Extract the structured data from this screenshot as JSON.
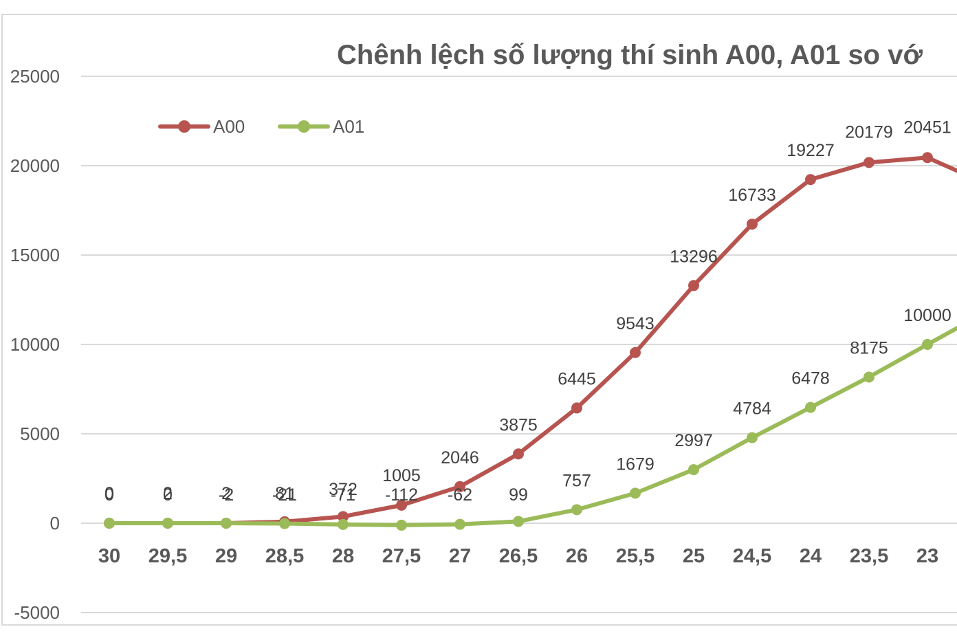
{
  "chart_data": {
    "type": "line",
    "title": "Chênh lệch số lượng thí sinh A00, A01 so vớ",
    "xlabel": "",
    "ylabel": "",
    "ylim": [
      -5000,
      25000
    ],
    "yticks": [
      -5000,
      0,
      5000,
      10000,
      15000,
      20000,
      25000
    ],
    "grid": true,
    "legend_position": "top-left",
    "categories": [
      "30",
      "29,5",
      "29",
      "28,5",
      "28",
      "27,5",
      "27",
      "26,5",
      "26",
      "25,5",
      "25",
      "24,5",
      "24",
      "23,5",
      "23"
    ],
    "series": [
      {
        "name": "A00",
        "color": "#b85450",
        "values": [
          0,
          2,
          2,
          81,
          372,
          1005,
          2046,
          3875,
          6445,
          9543,
          13296,
          16733,
          19227,
          20179,
          20451
        ],
        "labels": [
          "0",
          "2",
          "2",
          "81",
          "372",
          "1005",
          "2046",
          "3875",
          "6445",
          "9543",
          "13296",
          "16733",
          "19227",
          "20179",
          "20451"
        ],
        "continues_offscreen_to": 19000
      },
      {
        "name": "A01",
        "color": "#9bbb59",
        "values": [
          0,
          0,
          -2,
          -21,
          -71,
          -112,
          -62,
          99,
          757,
          1679,
          2997,
          4784,
          6478,
          8175,
          10000
        ],
        "labels": [
          "0",
          "0",
          "-2",
          "-21",
          "-71",
          "-112",
          "-62",
          "99",
          "757",
          "1679",
          "2997",
          "4784",
          "6478",
          "8175",
          "10000"
        ],
        "continues_offscreen_to": 11800
      }
    ]
  },
  "legend": {
    "items": [
      {
        "label": "A00",
        "color": "#b85450"
      },
      {
        "label": "A01",
        "color": "#9bbb59"
      }
    ]
  }
}
